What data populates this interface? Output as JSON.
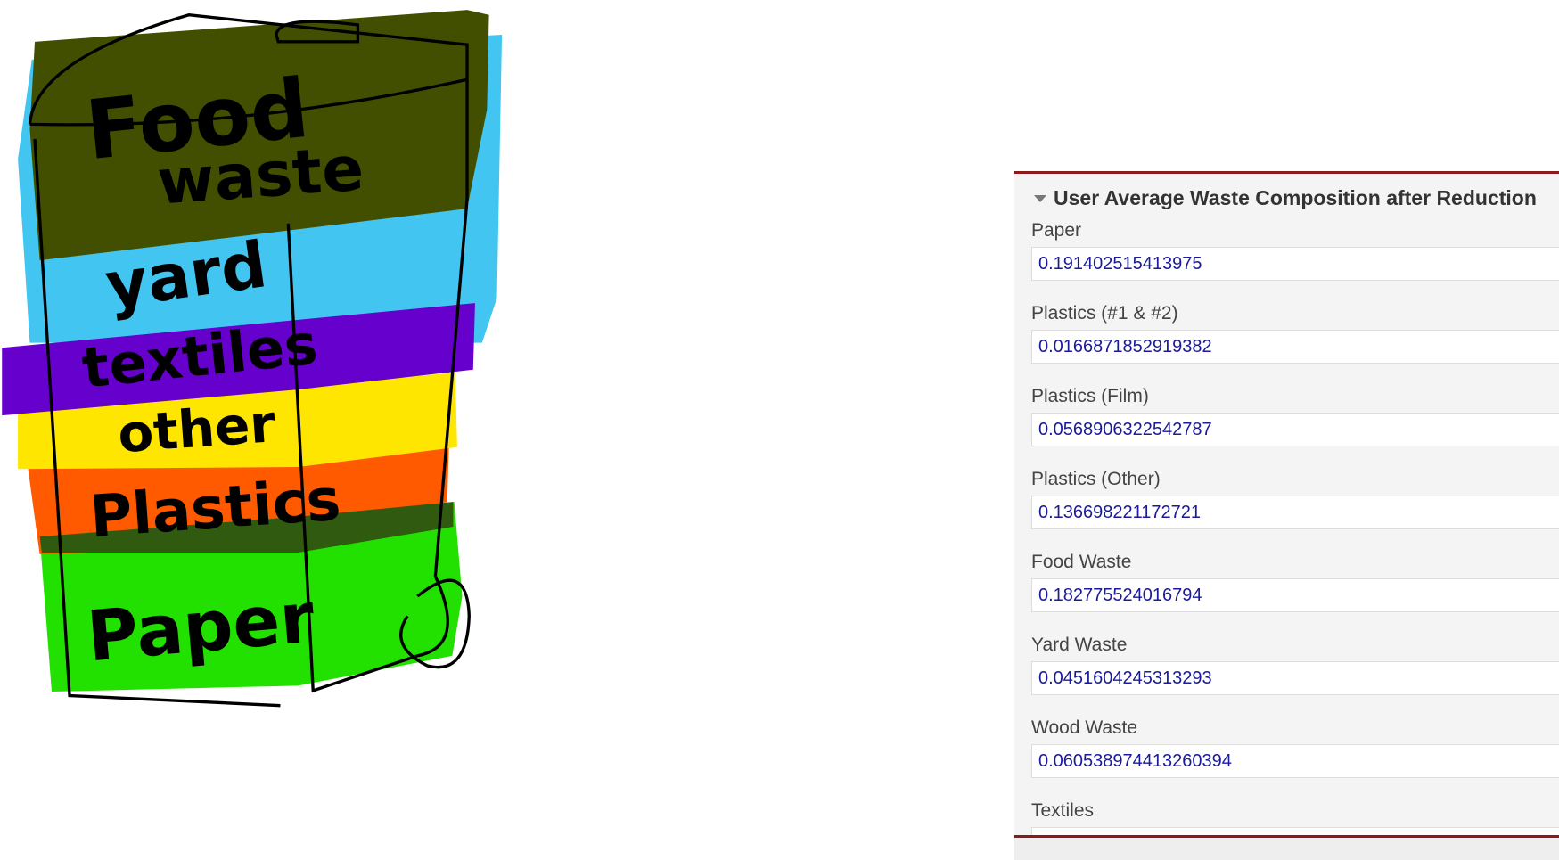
{
  "sketch": {
    "labels": [
      "Food",
      "waste",
      "yard",
      "textiles",
      "other",
      "Plastics",
      "Paper"
    ]
  },
  "panel": {
    "title": "User Average Waste Composition after Reduction",
    "fields": [
      {
        "label": "Paper",
        "value": "0.191402515413975"
      },
      {
        "label": "Plastics (#1 & #2)",
        "value": "0.0166871852919382"
      },
      {
        "label": "Plastics (Film)",
        "value": "0.0568906322542787"
      },
      {
        "label": "Plastics (Other)",
        "value": "0.136698221172721"
      },
      {
        "label": "Food Waste",
        "value": "0.182775524016794"
      },
      {
        "label": "Yard Waste",
        "value": "0.0451604245313293"
      },
      {
        "label": "Wood Waste",
        "value": "0.060538974413260394"
      },
      {
        "label": "Textiles"
      }
    ]
  }
}
